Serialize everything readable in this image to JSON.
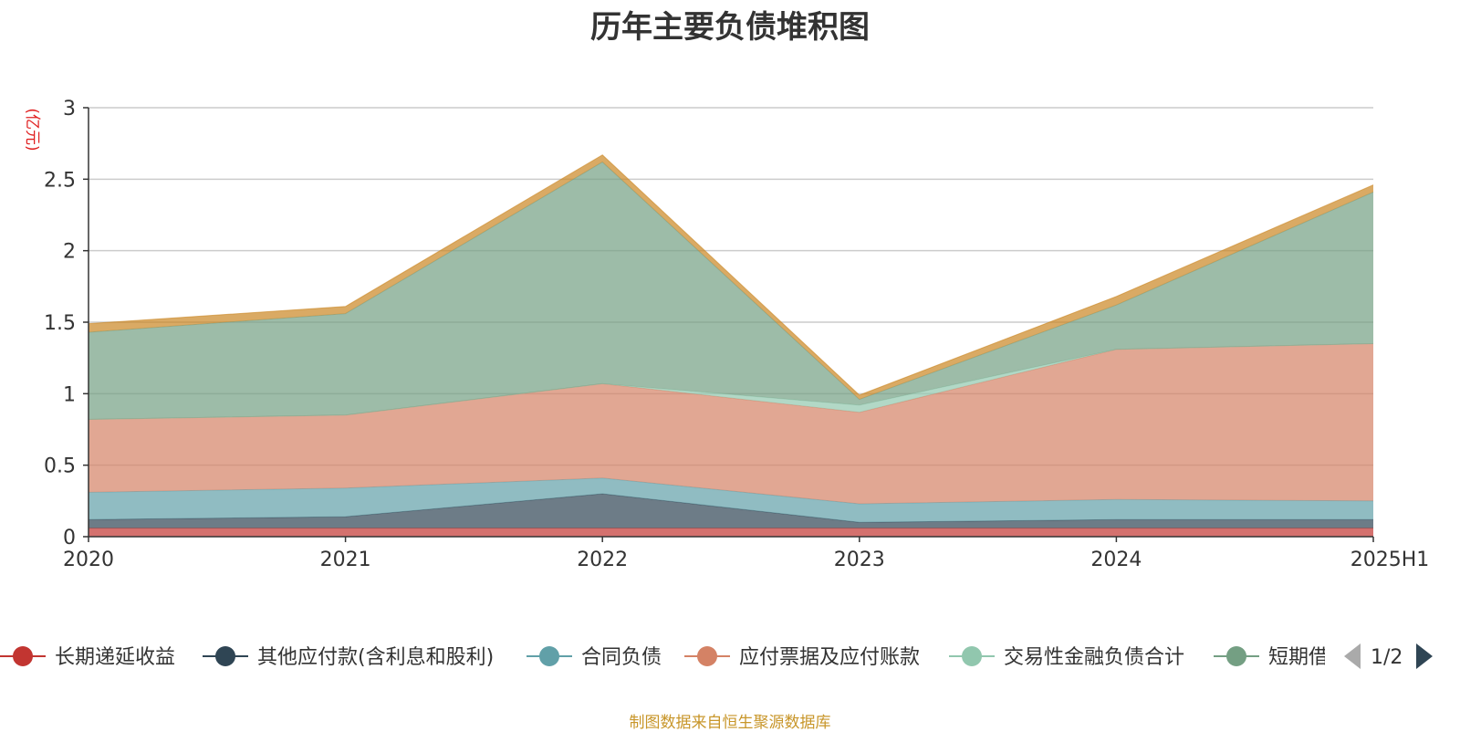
{
  "chart_data": {
    "type": "area",
    "title": "历年主要负债堆积图",
    "unit": "(亿元)",
    "x": [
      "2020",
      "2021",
      "2022",
      "2023",
      "2024",
      "2025H1"
    ],
    "ylim": [
      0,
      3
    ],
    "yticks": [
      "0",
      "0.5",
      "1",
      "1.5",
      "2",
      "2.5",
      "3"
    ],
    "grid": true,
    "stacked": true,
    "legend_position": "bottom",
    "series": [
      {
        "name": "长期递延收益",
        "color": "#c23531",
        "values": [
          0.06,
          0.06,
          0.06,
          0.06,
          0.06,
          0.06
        ]
      },
      {
        "name": "其他应付款(含利息和股利)",
        "color": "#2f4554",
        "values": [
          0.06,
          0.08,
          0.24,
          0.04,
          0.06,
          0.06
        ]
      },
      {
        "name": "合同负债",
        "color": "#61a0a8",
        "values": [
          0.19,
          0.2,
          0.11,
          0.13,
          0.14,
          0.13
        ]
      },
      {
        "name": "应付票据及应付账款",
        "color": "#d48265",
        "values": [
          0.51,
          0.51,
          0.66,
          0.64,
          1.05,
          1.1
        ]
      },
      {
        "name": "交易性金融负债合计",
        "color": "#91c7ae",
        "values": [
          0.0,
          0.0,
          0.0,
          0.05,
          0.0,
          0.0
        ]
      },
      {
        "name": "短期借款",
        "color": "#749f83",
        "values": [
          0.61,
          0.71,
          1.55,
          0.04,
          0.31,
          1.06
        ]
      },
      {
        "name": "",
        "color": "#ca8622",
        "values": [
          0.06,
          0.05,
          0.05,
          0.03,
          0.06,
          0.05
        ]
      }
    ]
  },
  "legend_pager": "1/2",
  "footer_note": "制图数据来自恒生聚源数据库",
  "icons": {
    "prev": "triangle-left-icon",
    "next": "triangle-right-icon"
  }
}
